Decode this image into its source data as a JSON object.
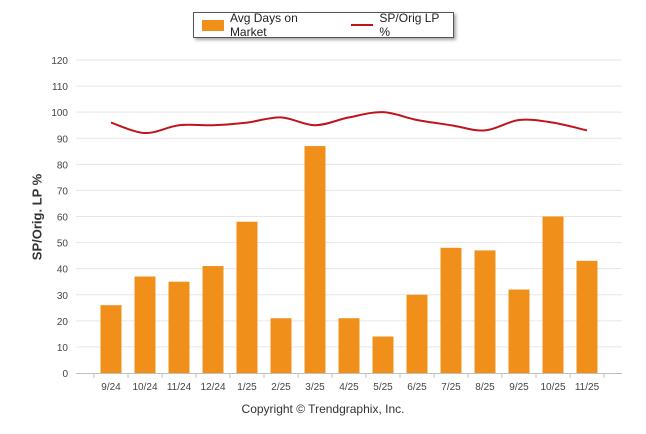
{
  "chart_data": {
    "type": "bar",
    "categories": [
      "9/24",
      "10/24",
      "11/24",
      "12/24",
      "1/25",
      "2/25",
      "3/25",
      "4/25",
      "5/25",
      "6/25",
      "7/25",
      "8/25",
      "9/25",
      "10/25",
      "11/25"
    ],
    "series": [
      {
        "name": "Avg Days on Market",
        "type": "bar",
        "color": "#F0901A",
        "values": [
          26,
          37,
          35,
          41,
          58,
          21,
          87,
          21,
          14,
          30,
          48,
          47,
          32,
          60,
          43
        ]
      },
      {
        "name": "SP/Orig LP %",
        "type": "line",
        "color": "#C0141C",
        "values": [
          96,
          92,
          95,
          95,
          96,
          98,
          95,
          98,
          100,
          97,
          95,
          93,
          97,
          96,
          93
        ]
      }
    ],
    "ylabel": "SP/Orig. LP %",
    "ylim": [
      0,
      120
    ],
    "yticks": [
      0,
      10,
      20,
      30,
      40,
      50,
      60,
      70,
      80,
      90,
      100,
      110,
      120
    ],
    "grid": true,
    "legend": "top-center"
  },
  "footer": {
    "copyright": "Copyright © Trendgraphix, Inc."
  }
}
